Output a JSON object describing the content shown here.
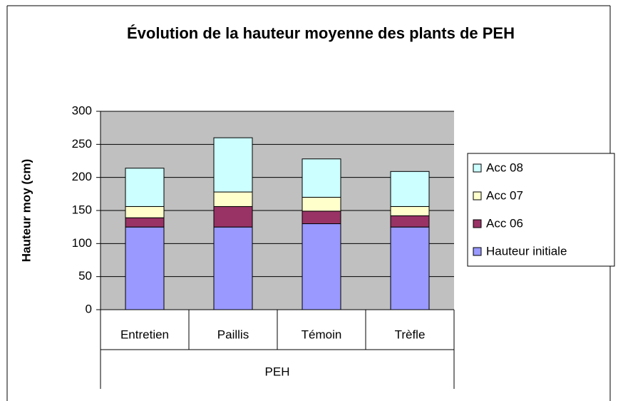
{
  "chart_data": {
    "type": "stacked_bar",
    "title": "Évolution de la hauteur moyenne des plants de PEH",
    "y_label": "Hauteur moy (cm)",
    "group": "PEH",
    "categories": [
      "Entretien",
      "Paillis",
      "Témoin",
      "Trèfle"
    ],
    "series": [
      {
        "name": "Hauteur initiale",
        "color": "#9999ff",
        "values": [
          125,
          125,
          130,
          125
        ]
      },
      {
        "name": "Acc 06",
        "color": "#993366",
        "values": [
          14,
          31,
          19,
          17
        ]
      },
      {
        "name": "Acc 07",
        "color": "#ffffcc",
        "values": [
          17,
          22,
          21,
          14
        ]
      },
      {
        "name": "Acc 08",
        "color": "#ccffff",
        "values": [
          58,
          82,
          58,
          53
        ]
      }
    ],
    "ylim": [
      0,
      300
    ],
    "yticks": [
      0,
      50,
      100,
      150,
      200,
      250,
      300
    ],
    "grid": true,
    "legend": "right"
  }
}
